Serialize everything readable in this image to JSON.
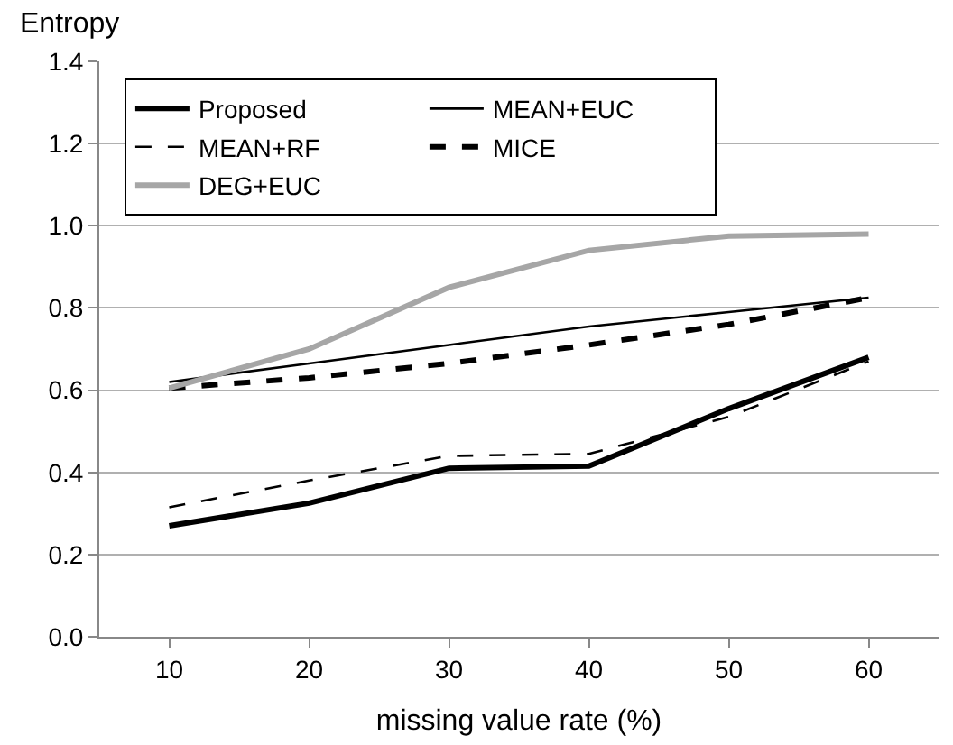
{
  "chart_data": {
    "type": "line",
    "xlabel": "missing value rate (%)",
    "ylabel": "Entropy",
    "categories": [
      "10",
      "20",
      "30",
      "40",
      "50",
      "60"
    ],
    "series": [
      {
        "name": "Proposed",
        "color": "#000000",
        "line_style": "solid",
        "values": [
          0.27,
          0.325,
          0.41,
          0.415,
          0.555,
          0.68
        ]
      },
      {
        "name": "MEAN+EUC",
        "color": "#000000",
        "line_style": "solid",
        "values": [
          0.62,
          0.665,
          0.71,
          0.755,
          0.79,
          0.825
        ]
      },
      {
        "name": "MEAN+RF",
        "color": "#000000",
        "line_style": "dashed",
        "values": [
          0.315,
          0.38,
          0.44,
          0.445,
          0.535,
          0.67
        ]
      },
      {
        "name": "MICE",
        "color": "#000000",
        "line_style": "dashed",
        "values": [
          0.605,
          0.63,
          0.665,
          0.71,
          0.76,
          0.825
        ]
      },
      {
        "name": "DEG+EUC",
        "color": "#a6a6a6",
        "line_style": "solid",
        "values": [
          0.605,
          0.7,
          0.85,
          0.94,
          0.975,
          0.98
        ]
      }
    ],
    "ylim": [
      0,
      1.4
    ],
    "yticks": [
      {
        "value": 0,
        "label": "0.0"
      },
      {
        "value": 0.2,
        "label": "0.2"
      },
      {
        "value": 0.4,
        "label": "0.4"
      },
      {
        "value": 0.6,
        "label": "0.6"
      },
      {
        "value": 0.8,
        "label": "0.8"
      },
      {
        "value": 1.0,
        "label": "1.0"
      },
      {
        "value": 1.2,
        "label": "1.2"
      },
      {
        "value": 1.4,
        "label": "1.4"
      }
    ],
    "grid": "y",
    "legend": "top",
    "marker": "none"
  }
}
